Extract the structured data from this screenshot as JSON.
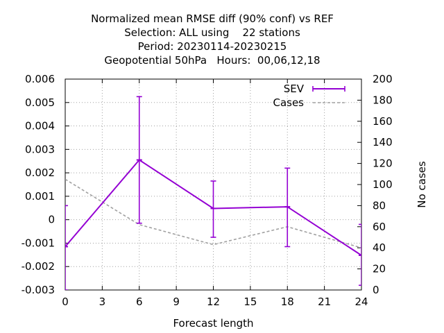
{
  "chart_data": {
    "type": "line",
    "title_lines": [
      "Normalized mean RMSE diff (90% conf) vs REF",
      "Selection: ALL using    22 stations",
      "Period: 20230114-20230215",
      "Geopotential 50hPa   Hours:  00,06,12,18"
    ],
    "xlabel": "Forecast length",
    "ylabel": "",
    "y2label": "No cases",
    "xlim": [
      0,
      24
    ],
    "ylim": [
      -0.003,
      0.006
    ],
    "y2lim": [
      0,
      200
    ],
    "x_ticks": [
      0,
      3,
      6,
      9,
      12,
      15,
      18,
      21,
      24
    ],
    "y_ticks": [
      -0.003,
      -0.002,
      -0.001,
      0,
      0.001,
      0.002,
      0.003,
      0.004,
      0.005,
      0.006
    ],
    "y_tick_labels": [
      "-0.003",
      "-0.002",
      "-0.001",
      "0",
      "0.001",
      "0.002",
      "0.003",
      "0.004",
      "0.005",
      "0.006"
    ],
    "y2_ticks": [
      0,
      20,
      40,
      60,
      80,
      100,
      120,
      140,
      160,
      180,
      200
    ],
    "grid": true,
    "legend_position": "top-right",
    "series": [
      {
        "name": "SEV",
        "axis": "left",
        "style": "errorbars",
        "color": "#9400d3",
        "x": [
          0,
          6,
          12,
          18,
          24
        ],
        "y": [
          -0.00115,
          0.00255,
          0.00048,
          0.00055,
          -0.00152
        ],
        "y_low": [
          -0.003,
          -0.00015,
          -0.00075,
          -0.00115,
          -0.0028
        ],
        "y_high": [
          0.0006,
          0.00525,
          0.00165,
          0.0022,
          -0.0002
        ]
      },
      {
        "name": "Cases",
        "axis": "right",
        "style": "dashed",
        "color": "#a0a0a0",
        "x": [
          0,
          6,
          12,
          18,
          24
        ],
        "y": [
          105,
          62,
          43,
          60,
          40
        ]
      }
    ]
  }
}
